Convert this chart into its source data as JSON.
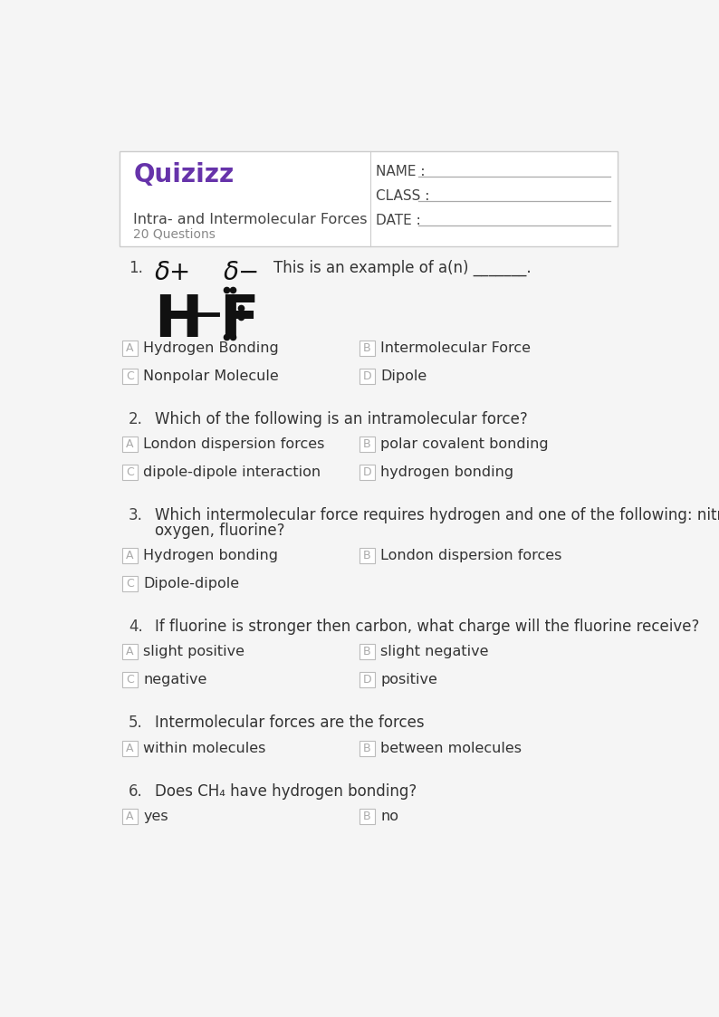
{
  "page_bg": "#f5f5f5",
  "box_bg": "#ffffff",
  "border_color": "#cccccc",
  "quizizz_color": "#6633aa",
  "title": "Intra- and Intermolecular Forces",
  "subtitle": "20 Questions",
  "header_fields": [
    "NAME :",
    "CLASS :",
    "DATE :"
  ],
  "questions": [
    {
      "num": "1.",
      "text": "This is an example of a(n) _______.",
      "has_hf_image": true,
      "choices": [
        {
          "label": "A",
          "text": "Hydrogen Bonding"
        },
        {
          "label": "B",
          "text": "Intermolecular Force"
        },
        {
          "label": "C",
          "text": "Nonpolar Molecule"
        },
        {
          "label": "D",
          "text": "Dipole"
        }
      ]
    },
    {
      "num": "2.",
      "text": "Which of the following is an intramolecular force?",
      "has_hf_image": false,
      "choices": [
        {
          "label": "A",
          "text": "London dispersion forces"
        },
        {
          "label": "B",
          "text": "polar covalent bonding"
        },
        {
          "label": "C",
          "text": "dipole-dipole interaction"
        },
        {
          "label": "D",
          "text": "hydrogen bonding"
        }
      ]
    },
    {
      "num": "3.",
      "text": "Which intermolecular force requires hydrogen and one of the following: nitrogen,\noxygen, fluorine?",
      "has_hf_image": false,
      "choices": [
        {
          "label": "A",
          "text": "Hydrogen bonding"
        },
        {
          "label": "B",
          "text": "London dispersion forces"
        },
        {
          "label": "C",
          "text": "Dipole-dipole"
        },
        {
          "label": "",
          "text": ""
        }
      ]
    },
    {
      "num": "4.",
      "text": "If fluorine is stronger then carbon, what charge will the fluorine receive?",
      "has_hf_image": false,
      "choices": [
        {
          "label": "A",
          "text": "slight positive"
        },
        {
          "label": "B",
          "text": "slight negative"
        },
        {
          "label": "C",
          "text": "negative"
        },
        {
          "label": "D",
          "text": "positive"
        }
      ]
    },
    {
      "num": "5.",
      "text": "Intermolecular forces are the forces",
      "has_hf_image": false,
      "choices": [
        {
          "label": "A",
          "text": "within molecules"
        },
        {
          "label": "B",
          "text": "between molecules"
        },
        {
          "label": "",
          "text": ""
        },
        {
          "label": "",
          "text": ""
        }
      ]
    },
    {
      "num": "6.",
      "text": "Does CH₄ have hydrogen bonding?",
      "has_hf_image": false,
      "choices": [
        {
          "label": "A",
          "text": "yes"
        },
        {
          "label": "B",
          "text": "no"
        },
        {
          "label": "",
          "text": ""
        },
        {
          "label": "",
          "text": ""
        }
      ]
    }
  ]
}
